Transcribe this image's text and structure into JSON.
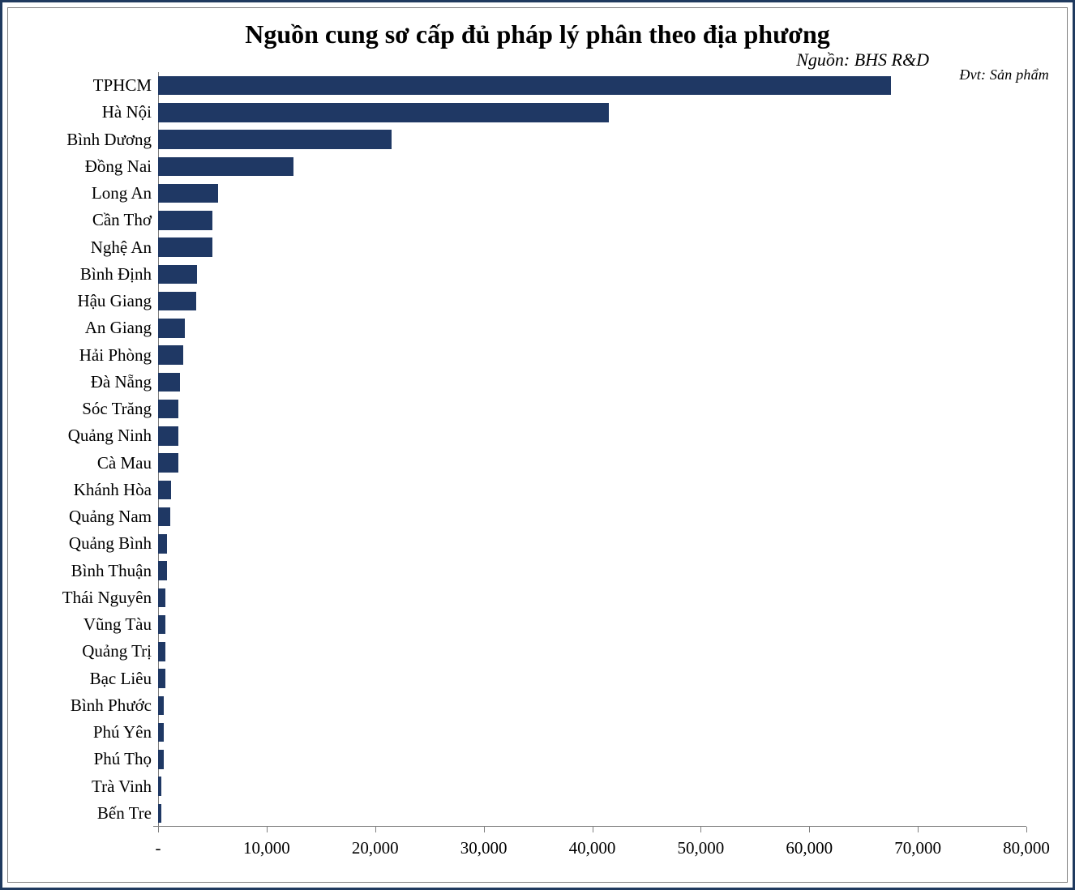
{
  "chart": {
    "type": "horizontal-bar",
    "title": "Nguồn cung sơ cấp đủ pháp lý phân theo địa phương",
    "source_label": "Nguồn: BHS R&D",
    "unit_label": "Đvt: Sản phẩm",
    "title_fontsize": 32,
    "source_fontsize": 22,
    "unit_fontsize": 18,
    "label_fontsize": 21,
    "tick_fontsize": 21,
    "bar_color": "#1f3864",
    "background_color": "#ffffff",
    "outer_border_color": "#1f3a5f",
    "inner_border_color": "#808080",
    "axis_color": "#808080",
    "text_color": "#000000",
    "xlim": [
      0,
      80000
    ],
    "xtick_step": 10000,
    "xticks": [
      {
        "value": 0,
        "label": " -"
      },
      {
        "value": 10000,
        "label": " 10,000"
      },
      {
        "value": 20000,
        "label": " 20,000"
      },
      {
        "value": 30000,
        "label": " 30,000"
      },
      {
        "value": 40000,
        "label": " 40,000"
      },
      {
        "value": 50000,
        "label": " 50,000"
      },
      {
        "value": 60000,
        "label": " 60,000"
      },
      {
        "value": 70000,
        "label": " 70,000"
      },
      {
        "value": 80000,
        "label": " 80,000"
      }
    ],
    "bar_gap_ratio": 0.3,
    "data": [
      {
        "category": "TPHCM",
        "value": 67500
      },
      {
        "category": "Hà Nội",
        "value": 41500
      },
      {
        "category": "Bình Dương",
        "value": 21500
      },
      {
        "category": "Đồng Nai",
        "value": 12500
      },
      {
        "category": "Long An",
        "value": 5500
      },
      {
        "category": "Cần Thơ",
        "value": 5000
      },
      {
        "category": "Nghệ An",
        "value": 5000
      },
      {
        "category": "Bình Định",
        "value": 3600
      },
      {
        "category": "Hậu Giang",
        "value": 3500
      },
      {
        "category": "An Giang",
        "value": 2500
      },
      {
        "category": "Hải Phòng",
        "value": 2300
      },
      {
        "category": "Đà Nẵng",
        "value": 2000
      },
      {
        "category": "Sóc Trăng",
        "value": 1900
      },
      {
        "category": "Quảng Ninh",
        "value": 1900
      },
      {
        "category": "Cà Mau",
        "value": 1900
      },
      {
        "category": "Khánh Hòa",
        "value": 1200
      },
      {
        "category": "Quảng Nam",
        "value": 1100
      },
      {
        "category": "Quảng Bình",
        "value": 800
      },
      {
        "category": "Bình Thuận",
        "value": 800
      },
      {
        "category": "Thái Nguyên",
        "value": 700
      },
      {
        "category": "Vũng Tàu",
        "value": 700
      },
      {
        "category": "Quảng Trị",
        "value": 700
      },
      {
        "category": "Bạc Liêu",
        "value": 700
      },
      {
        "category": "Bình Phước",
        "value": 500
      },
      {
        "category": "Phú Yên",
        "value": 500
      },
      {
        "category": "Phú Thọ",
        "value": 500
      },
      {
        "category": "Trà Vinh",
        "value": 300
      },
      {
        "category": "Bến Tre",
        "value": 300
      }
    ]
  }
}
